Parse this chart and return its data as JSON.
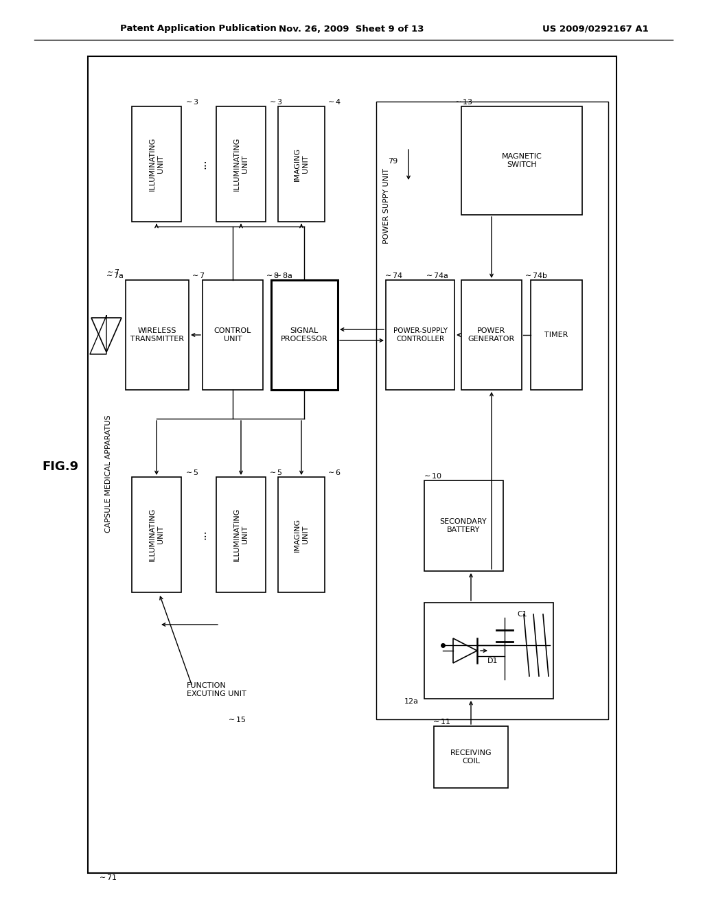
{
  "bg": "#ffffff",
  "header_left": "Patent Application Publication",
  "header_mid": "Nov. 26, 2009  Sheet 9 of 13",
  "header_right": "US 2009/0292167 A1",
  "fig_label": "FIG.9"
}
